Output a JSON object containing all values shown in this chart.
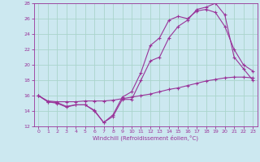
{
  "xlabel": "Windchill (Refroidissement éolien,°C)",
  "background_color": "#cce8f0",
  "grid_color": "#aad4cc",
  "line_color": "#993399",
  "xlim": [
    -0.5,
    23.5
  ],
  "ylim": [
    12,
    28
  ],
  "yticks": [
    12,
    14,
    16,
    18,
    20,
    22,
    24,
    26,
    28
  ],
  "xticks": [
    0,
    1,
    2,
    3,
    4,
    5,
    6,
    7,
    8,
    9,
    10,
    11,
    12,
    13,
    14,
    15,
    16,
    17,
    18,
    19,
    20,
    21,
    22,
    23
  ],
  "line1_x": [
    0,
    1,
    2,
    3,
    4,
    5,
    6,
    7,
    8,
    9,
    10,
    11,
    12,
    13,
    14,
    15,
    16,
    17,
    18,
    19,
    20,
    21,
    22,
    23
  ],
  "line1_y": [
    16.0,
    15.2,
    15.1,
    14.6,
    14.8,
    14.8,
    14.1,
    12.5,
    13.3,
    15.5,
    15.5,
    18.0,
    20.5,
    21.0,
    23.5,
    25.0,
    25.8,
    27.2,
    27.5,
    28.0,
    26.5,
    21.0,
    19.5,
    18.0
  ],
  "line2_x": [
    0,
    1,
    2,
    3,
    4,
    5,
    6,
    7,
    8,
    9,
    10,
    11,
    12,
    13,
    14,
    15,
    16,
    17,
    18,
    19,
    20,
    21,
    22,
    23
  ],
  "line2_y": [
    16.0,
    15.3,
    15.2,
    15.2,
    15.2,
    15.3,
    15.3,
    15.3,
    15.4,
    15.6,
    15.8,
    16.0,
    16.2,
    16.5,
    16.8,
    17.0,
    17.3,
    17.6,
    17.9,
    18.1,
    18.3,
    18.4,
    18.4,
    18.3
  ],
  "line3_x": [
    0,
    1,
    2,
    3,
    4,
    5,
    6,
    7,
    8,
    9,
    10,
    11,
    12,
    13,
    14,
    15,
    16,
    17,
    18,
    19,
    20,
    21,
    22,
    23
  ],
  "line3_y": [
    16.0,
    15.2,
    15.0,
    14.5,
    14.8,
    14.8,
    14.0,
    12.5,
    13.5,
    15.8,
    16.5,
    19.0,
    22.5,
    23.5,
    25.8,
    26.3,
    26.0,
    27.0,
    27.2,
    26.8,
    25.0,
    22.0,
    20.0,
    19.2
  ]
}
